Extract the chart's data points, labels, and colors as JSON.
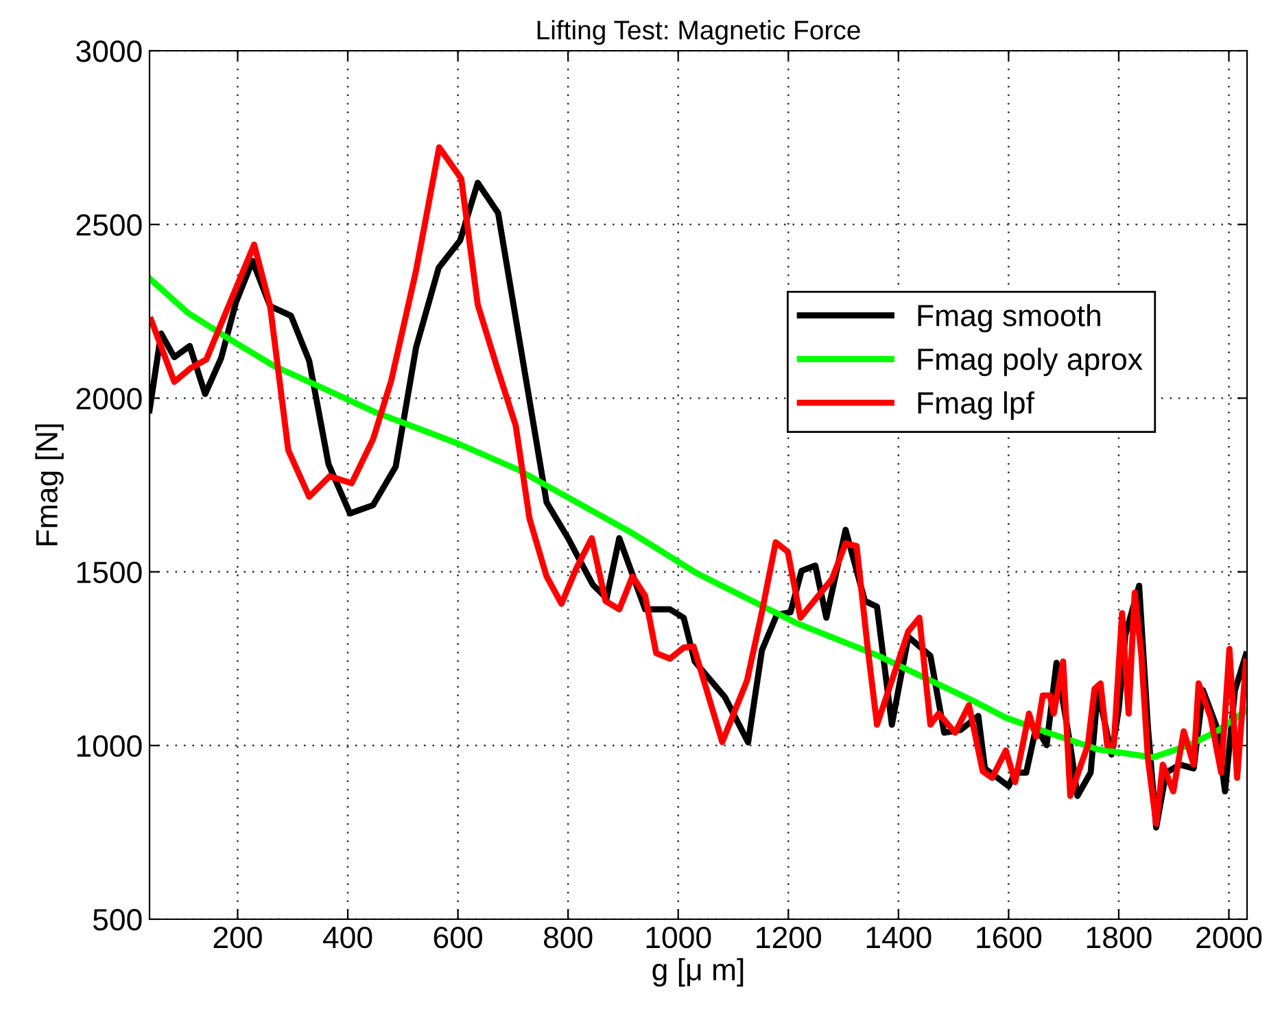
{
  "chart_data": {
    "type": "line",
    "title": "Lifting Test: Magnetic Force",
    "xlabel": "g [μ m]",
    "ylabel": "Fmag [N]",
    "xlim": [
      40,
      2033
    ],
    "ylim": [
      500,
      3000
    ],
    "xticks": [
      200,
      400,
      600,
      800,
      1000,
      1200,
      1400,
      1600,
      1800,
      2000
    ],
    "yticks": [
      500,
      1000,
      1500,
      2000,
      2500,
      3000
    ],
    "grid": true,
    "legend": "right",
    "line_style": "solid",
    "marker": "none",
    "series": [
      {
        "name": "Fmag smooth",
        "color": "#000000",
        "x": [
          40,
          61,
          85,
          113,
          141,
          170,
          197,
          227,
          259,
          297,
          330,
          365,
          404,
          446,
          487,
          524,
          565,
          604,
          636,
          673,
          761,
          800,
          845,
          870,
          893,
          940,
          985,
          1010,
          1030,
          1085,
          1127,
          1152,
          1179,
          1204,
          1224,
          1249,
          1269,
          1304,
          1339,
          1361,
          1388,
          1418,
          1458,
          1483,
          1513,
          1545,
          1557,
          1600,
          1612,
          1632,
          1650,
          1669,
          1687,
          1712,
          1725,
          1749,
          1762,
          1787,
          1800,
          1812,
          1837,
          1853,
          1868,
          1886,
          1911,
          1936,
          1953,
          1978,
          1993,
          2011,
          2031
        ],
        "values": [
          1965,
          2186,
          2118,
          2150,
          2012,
          2115,
          2276,
          2395,
          2265,
          2237,
          2107,
          1810,
          1668,
          1692,
          1803,
          2146,
          2375,
          2454,
          2620,
          2533,
          1700,
          1597,
          1463,
          1424,
          1597,
          1392,
          1392,
          1368,
          1242,
          1139,
          1009,
          1274,
          1376,
          1384,
          1503,
          1518,
          1368,
          1621,
          1416,
          1400,
          1060,
          1313,
          1258,
          1037,
          1045,
          1085,
          934,
          883,
          922,
          922,
          1053,
          1001,
          1238,
          1001,
          855,
          922,
          1159,
          974,
          1105,
          1318,
          1460,
          1053,
          764,
          922,
          945,
          934,
          1159,
          1053,
          868,
          1159,
          1262
        ]
      },
      {
        "name": "Fmag poly aprox",
        "color": "#00ff00",
        "x": [
          40,
          110,
          185,
          268,
          367,
          449,
          599,
          708,
          915,
          1035,
          1214,
          1364,
          1533,
          1595,
          1679,
          1762,
          1862,
          1928,
          1978,
          2031
        ],
        "values": [
          2345,
          2245,
          2170,
          2091,
          2020,
          1960,
          1870,
          1795,
          1613,
          1495,
          1353,
          1258,
          1131,
          1080,
          1033,
          989,
          966,
          1001,
          1041,
          1100
        ]
      },
      {
        "name": "Fmag lpf",
        "color": "#ff0000",
        "x": [
          43,
          85,
          115,
          143,
          230,
          259,
          292,
          330,
          367,
          407,
          446,
          479,
          524,
          566,
          606,
          636,
          673,
          705,
          730,
          761,
          788,
          815,
          843,
          868,
          893,
          917,
          940,
          960,
          985,
          1010,
          1028,
          1080,
          1125,
          1152,
          1177,
          1199,
          1222,
          1279,
          1304,
          1324,
          1344,
          1361,
          1388,
          1418,
          1438,
          1458,
          1473,
          1503,
          1528,
          1553,
          1570,
          1595,
          1612,
          1637,
          1650,
          1662,
          1675,
          1682,
          1699,
          1712,
          1729,
          1744,
          1756,
          1767,
          1779,
          1791,
          1806,
          1818,
          1829,
          1841,
          1853,
          1868,
          1880,
          1899,
          1918,
          1936,
          1945,
          1967,
          1986,
          2001,
          2015,
          2031
        ],
        "values": [
          2225,
          2047,
          2087,
          2111,
          2442,
          2265,
          1850,
          1716,
          1775,
          1755,
          1882,
          2051,
          2367,
          2722,
          2632,
          2269,
          2079,
          1921,
          1653,
          1487,
          1408,
          1510,
          1597,
          1416,
          1392,
          1487,
          1431,
          1266,
          1250,
          1282,
          1285,
          1010,
          1187,
          1384,
          1585,
          1558,
          1368,
          1479,
          1582,
          1574,
          1282,
          1060,
          1187,
          1329,
          1368,
          1060,
          1092,
          1037,
          1116,
          926,
          907,
          986,
          895,
          1092,
          1025,
          1144,
          1144,
          1092,
          1242,
          855,
          934,
          1001,
          1163,
          1179,
          1001,
          1001,
          1381,
          1092,
          1440,
          1262,
          962,
          775,
          945,
          868,
          1041,
          945,
          1179,
          1080,
          922,
          1278,
          907,
          1242
        ]
      }
    ]
  }
}
